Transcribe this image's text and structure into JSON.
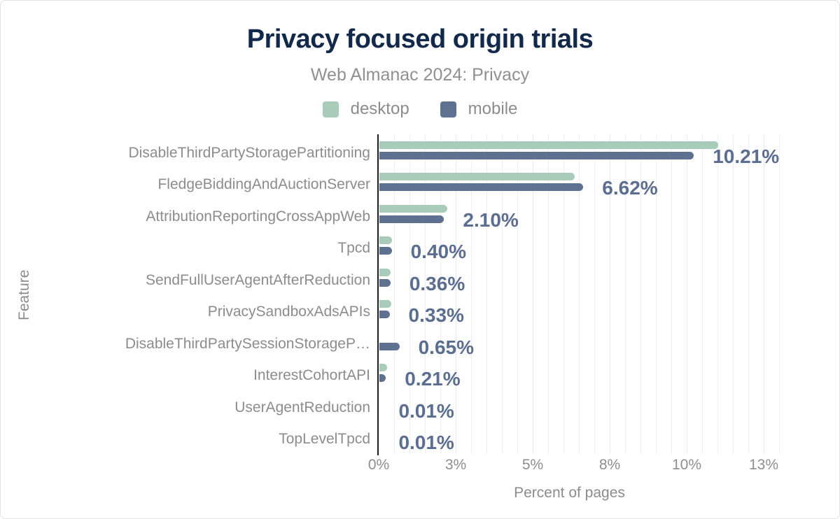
{
  "title": "Privacy focused origin trials",
  "subtitle": "Web Almanac 2024: Privacy",
  "legend": {
    "items": [
      {
        "label": "desktop",
        "color": "#a9cbb9"
      },
      {
        "label": "mobile",
        "color": "#5e7190"
      }
    ]
  },
  "axes": {
    "x_title": "Percent of pages",
    "y_title": "Feature",
    "x_tick_labels": [
      "0%",
      "3%",
      "5%",
      "8%",
      "10%",
      "13%"
    ]
  },
  "colors": {
    "title": "#12294b",
    "subtitle": "#909090",
    "axis_text": "#8c8c8c",
    "value_label": "#5b6d90",
    "desktop_bar": "#a9cbb9",
    "mobile_bar": "#5e7190",
    "axis_line": "#1d1d22",
    "gridline": "#ededf2"
  },
  "chart_data": {
    "type": "bar",
    "orientation": "horizontal",
    "title": "Privacy focused origin trials",
    "subtitle": "Web Almanac 2024: Privacy",
    "xlabel": "Percent of pages",
    "ylabel": "Feature",
    "xlim": [
      0,
      13
    ],
    "x_tick_values": [
      0,
      2.5,
      5,
      7.5,
      10,
      12.5
    ],
    "x_tick_labels": [
      "0%",
      "3%",
      "5%",
      "8%",
      "10%",
      "13%"
    ],
    "grid": "vertical, minor every 0.5%",
    "legend_position": "top",
    "categories": [
      "DisableThirdPartyStoragePartitioning",
      "FledgeBiddingAndAuctionServer",
      "AttributionReportingCrossAppWeb",
      "Tpcd",
      "SendFullUserAgentAfterReduction",
      "PrivacySandboxAdsAPIs",
      "DisableThirdPartySessionStorageP…",
      "InterestCohortAPI",
      "UserAgentReduction",
      "TopLevelTpcd"
    ],
    "series": [
      {
        "name": "desktop",
        "color": "#a9cbb9",
        "values": [
          11.0,
          6.34,
          2.2,
          0.41,
          0.37,
          0.38,
          0.0,
          0.24,
          0.01,
          0.01
        ]
      },
      {
        "name": "mobile",
        "color": "#5e7190",
        "values": [
          10.21,
          6.62,
          2.1,
          0.4,
          0.36,
          0.33,
          0.65,
          0.21,
          0.01,
          0.01
        ]
      }
    ],
    "value_labels": [
      "10.21%",
      "6.62%",
      "2.10%",
      "0.40%",
      "0.36%",
      "0.33%",
      "0.65%",
      "0.21%",
      "0.01%",
      "0.01%"
    ],
    "value_labels_series": "mobile"
  }
}
